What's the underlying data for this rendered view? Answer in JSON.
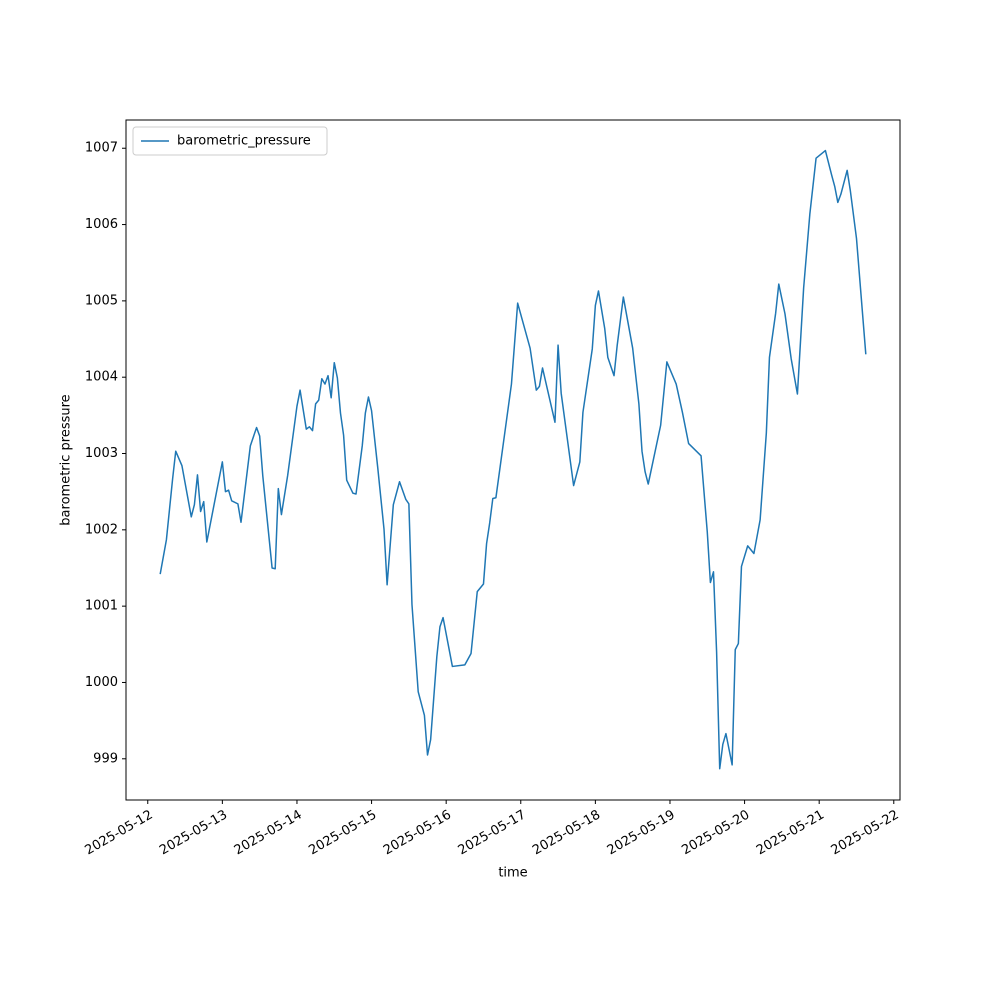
{
  "chart_data": {
    "type": "line",
    "x_label": "time",
    "y_label": "barometric pressure",
    "x": [
      "2025-05-12 04:00",
      "2025-05-12 06:00",
      "2025-05-12 08:00",
      "2025-05-12 09:00",
      "2025-05-12 11:00",
      "2025-05-12 14:00",
      "2025-05-12 15:00",
      "2025-05-12 16:00",
      "2025-05-12 17:00",
      "2025-05-12 18:00",
      "2025-05-12 19:00",
      "2025-05-13 00:00",
      "2025-05-13 01:00",
      "2025-05-13 02:00",
      "2025-05-13 03:00",
      "2025-05-13 05:00",
      "2025-05-13 06:00",
      "2025-05-13 09:00",
      "2025-05-13 11:00",
      "2025-05-13 12:00",
      "2025-05-13 13:00",
      "2025-05-13 16:00",
      "2025-05-13 17:00",
      "2025-05-13 18:00",
      "2025-05-13 19:00",
      "2025-05-13 21:00",
      "2025-05-14 00:00",
      "2025-05-14 01:00",
      "2025-05-14 03:00",
      "2025-05-14 04:00",
      "2025-05-14 05:00",
      "2025-05-14 06:00",
      "2025-05-14 07:00",
      "2025-05-14 08:00",
      "2025-05-14 09:00",
      "2025-05-14 10:00",
      "2025-05-14 11:00",
      "2025-05-14 12:00",
      "2025-05-14 13:00",
      "2025-05-14 14:00",
      "2025-05-14 15:00",
      "2025-05-14 16:00",
      "2025-05-14 18:00",
      "2025-05-14 19:00",
      "2025-05-14 21:00",
      "2025-05-14 22:00",
      "2025-05-14 23:00",
      "2025-05-15 00:00",
      "2025-05-15 02:00",
      "2025-05-15 04:00",
      "2025-05-15 05:00",
      "2025-05-15 07:00",
      "2025-05-15 09:00",
      "2025-05-15 11:00",
      "2025-05-15 12:00",
      "2025-05-15 13:00",
      "2025-05-15 15:00",
      "2025-05-15 17:00",
      "2025-05-15 18:00",
      "2025-05-15 19:00",
      "2025-05-15 21:00",
      "2025-05-15 22:00",
      "2025-05-15 23:00",
      "2025-05-16 02:00",
      "2025-05-16 06:00",
      "2025-05-16 08:00",
      "2025-05-16 10:00",
      "2025-05-16 12:00",
      "2025-05-16 13:00",
      "2025-05-16 14:00",
      "2025-05-16 15:00",
      "2025-05-16 16:00",
      "2025-05-16 21:00",
      "2025-05-16 23:00",
      "2025-05-17 03:00",
      "2025-05-17 05:00",
      "2025-05-17 06:00",
      "2025-05-17 07:00",
      "2025-05-17 11:00",
      "2025-05-17 12:00",
      "2025-05-17 13:00",
      "2025-05-17 17:00",
      "2025-05-17 19:00",
      "2025-05-17 20:00",
      "2025-05-17 23:00",
      "2025-05-18 00:00",
      "2025-05-18 01:00",
      "2025-05-18 03:00",
      "2025-05-18 04:00",
      "2025-05-18 06:00",
      "2025-05-18 07:00",
      "2025-05-18 09:00",
      "2025-05-18 12:00",
      "2025-05-18 14:00",
      "2025-05-18 15:00",
      "2025-05-18 16:00",
      "2025-05-18 17:00",
      "2025-05-18 21:00",
      "2025-05-18 23:00",
      "2025-05-19 02:00",
      "2025-05-19 04:00",
      "2025-05-19 06:00",
      "2025-05-19 10:00",
      "2025-05-19 12:00",
      "2025-05-19 13:00",
      "2025-05-19 14:00",
      "2025-05-19 15:00",
      "2025-05-19 16:00",
      "2025-05-19 17:00",
      "2025-05-19 18:00",
      "2025-05-19 20:00",
      "2025-05-19 21:00",
      "2025-05-19 22:00",
      "2025-05-19 23:00",
      "2025-05-20 01:00",
      "2025-05-20 03:00",
      "2025-05-20 05:00",
      "2025-05-20 07:00",
      "2025-05-20 08:00",
      "2025-05-20 10:00",
      "2025-05-20 11:00",
      "2025-05-20 13:00",
      "2025-05-20 15:00",
      "2025-05-20 17:00",
      "2025-05-20 19:00",
      "2025-05-20 21:00",
      "2025-05-20 23:00",
      "2025-05-21 02:00",
      "2025-05-21 04:00",
      "2025-05-21 05:00",
      "2025-05-21 06:00",
      "2025-05-21 07:00",
      "2025-05-21 09:00",
      "2025-05-21 10:00",
      "2025-05-21 12:00",
      "2025-05-21 15:00"
    ],
    "series": [
      {
        "name": "barometric_pressure",
        "color": "#1f77b4",
        "values": [
          1001.42,
          1001.87,
          1002.67,
          1003.03,
          1002.84,
          1002.17,
          1002.33,
          1002.72,
          1002.24,
          1002.37,
          1001.84,
          1002.89,
          1002.5,
          1002.52,
          1002.38,
          1002.34,
          1002.1,
          1003.1,
          1003.34,
          1003.23,
          1002.71,
          1001.5,
          1001.49,
          1002.54,
          1002.2,
          1002.71,
          1003.62,
          1003.83,
          1003.32,
          1003.35,
          1003.3,
          1003.65,
          1003.7,
          1003.98,
          1003.91,
          1004.02,
          1003.73,
          1004.19,
          1003.99,
          1003.53,
          1003.24,
          1002.65,
          1002.48,
          1002.47,
          1003.1,
          1003.53,
          1003.74,
          1003.56,
          1002.81,
          1002.01,
          1001.28,
          1002.33,
          1002.63,
          1002.4,
          1002.34,
          1001.02,
          999.88,
          999.57,
          999.05,
          999.25,
          1000.34,
          1000.73,
          1000.85,
          1000.21,
          1000.23,
          1000.38,
          1001.19,
          1001.29,
          1001.82,
          1002.09,
          1002.41,
          1002.42,
          1003.91,
          1004.97,
          1004.38,
          1003.83,
          1003.88,
          1004.12,
          1003.41,
          1004.42,
          1003.79,
          1002.58,
          1002.89,
          1003.54,
          1004.37,
          1004.94,
          1005.13,
          1004.64,
          1004.26,
          1004.02,
          1004.41,
          1005.05,
          1004.38,
          1003.65,
          1003.03,
          1002.76,
          1002.6,
          1003.37,
          1004.2,
          1003.91,
          1003.54,
          1003.13,
          1002.97,
          1001.97,
          1001.31,
          1001.45,
          1000.4,
          998.87,
          999.19,
          999.33,
          998.92,
          1000.43,
          1000.51,
          1001.52,
          1001.79,
          1001.69,
          1002.13,
          1003.27,
          1004.26,
          1004.84,
          1005.22,
          1004.83,
          1004.24,
          1003.78,
          1005.17,
          1006.14,
          1006.87,
          1006.97,
          1006.65,
          1006.5,
          1006.29,
          1006.4,
          1006.71,
          1006.45,
          1005.82,
          1004.3
        ]
      }
    ],
    "xlim": [
      "2025-05-11 17:00",
      "2025-05-22 02:00"
    ],
    "xticks": [
      "2025-05-12",
      "2025-05-13",
      "2025-05-14",
      "2025-05-15",
      "2025-05-16",
      "2025-05-17",
      "2025-05-18",
      "2025-05-19",
      "2025-05-20",
      "2025-05-21",
      "2025-05-22"
    ],
    "ylim": [
      998.46,
      1007.37
    ],
    "yticks": [
      999,
      1000,
      1001,
      1002,
      1003,
      1004,
      1005,
      1006,
      1007
    ],
    "legend": "upper left"
  }
}
